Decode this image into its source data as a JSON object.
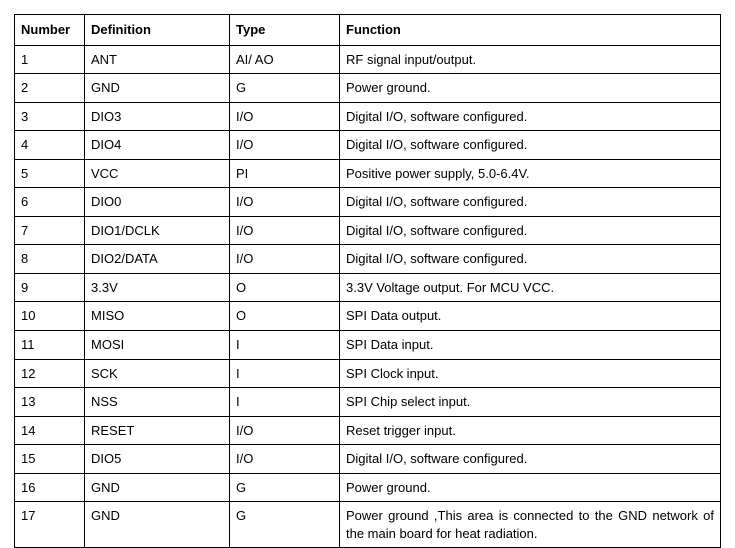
{
  "table": {
    "headers": {
      "number": "Number",
      "definition": "Definition",
      "type": "Type",
      "function": "Function"
    },
    "rows": [
      {
        "number": "1",
        "definition": "ANT",
        "type": "AI/ AO",
        "function": "RF signal input/output."
      },
      {
        "number": "2",
        "definition": "GND",
        "type": "G",
        "function": "Power ground."
      },
      {
        "number": "3",
        "definition": "DIO3",
        "type": "I/O",
        "function": "Digital I/O, software configured."
      },
      {
        "number": "4",
        "definition": "DIO4",
        "type": "I/O",
        "function": "Digital I/O, software configured."
      },
      {
        "number": "5",
        "definition": "VCC",
        "type": "PI",
        "function": "Positive power supply,    5.0-6.4V."
      },
      {
        "number": "6",
        "definition": "DIO0",
        "type": "I/O",
        "function": "Digital I/O, software configured."
      },
      {
        "number": "7",
        "definition": "DIO1/DCLK",
        "type": "I/O",
        "function": "Digital I/O, software configured."
      },
      {
        "number": "8",
        "definition": "DIO2/DATA",
        "type": "I/O",
        "function": "Digital I/O, software configured."
      },
      {
        "number": "9",
        "definition": "3.3V",
        "type": "O",
        "function": "3.3V Voltage output. For MCU VCC."
      },
      {
        "number": "10",
        "definition": "MISO",
        "type": "O",
        "function": "SPI Data output."
      },
      {
        "number": "11",
        "definition": "MOSI",
        "type": "I",
        "function": "SPI Data input."
      },
      {
        "number": "12",
        "definition": "SCK",
        "type": "I",
        "function": "SPI Clock input."
      },
      {
        "number": "13",
        "definition": "NSS",
        "type": "I",
        "function": "SPI Chip select input."
      },
      {
        "number": "14",
        "definition": "RESET",
        "type": "I/O",
        "function": "Reset trigger input."
      },
      {
        "number": "15",
        "definition": "DIO5",
        "type": "I/O",
        "function": "Digital I/O, software configured."
      },
      {
        "number": "16",
        "definition": "GND",
        "type": "G",
        "function": "Power ground."
      },
      {
        "number": "17",
        "definition": "GND",
        "type": "G",
        "function": "Power ground ,This area is connected to the GND network of the main board for heat radiation."
      }
    ]
  }
}
